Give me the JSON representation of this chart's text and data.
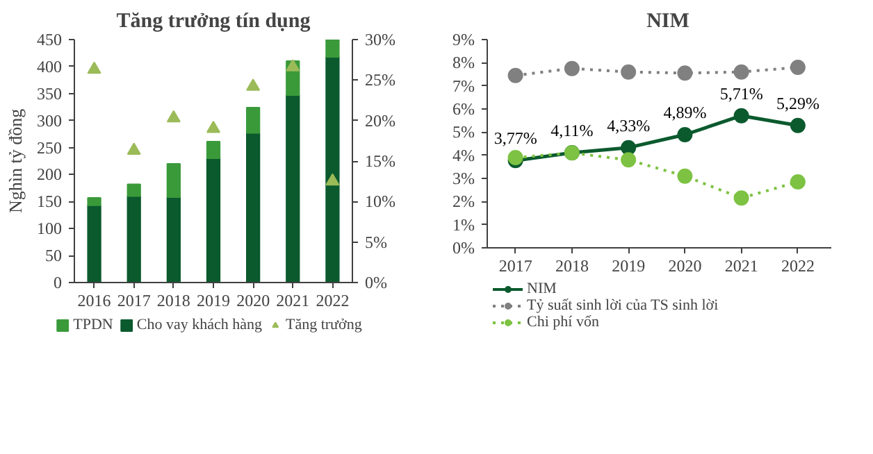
{
  "chart_data": [
    {
      "type": "bar",
      "title": "Tăng trưởng tín dụng",
      "ylabel": "Nghìn tỷ đồng",
      "categories": [
        "2016",
        "2017",
        "2018",
        "2019",
        "2020",
        "2021",
        "2022"
      ],
      "stacked": true,
      "legend": "bottom",
      "grid": false,
      "series": [
        {
          "name": "Cho vay khách hàng",
          "color": "#0b5a2e",
          "values": [
            143,
            160,
            158,
            230,
            277,
            347,
            418
          ]
        },
        {
          "name": "TPDN",
          "color": "#3a9a3a",
          "values": [
            14,
            22,
            62,
            31,
            47,
            63,
            32
          ]
        },
        {
          "name": "Tăng trưởng",
          "type": "scatter",
          "axis": "y2",
          "marker": "triangle",
          "color": "#9bbb59",
          "values": [
            26.3,
            16.3,
            20.3,
            19.0,
            24.2,
            26.6,
            12.5
          ]
        }
      ],
      "ylim": [
        0,
        450
      ],
      "yticks": [
        0,
        50,
        100,
        150,
        200,
        250,
        300,
        350,
        400,
        450
      ],
      "y2lim": [
        0,
        30
      ],
      "y2ticks": [
        {
          "value": 0,
          "label": "0%"
        },
        {
          "value": 5,
          "label": "5%"
        },
        {
          "value": 10,
          "label": "10%"
        },
        {
          "value": 15,
          "label": "15%"
        },
        {
          "value": 20,
          "label": "20%"
        },
        {
          "value": 25,
          "label": "25%"
        },
        {
          "value": 30,
          "label": "30%"
        }
      ]
    },
    {
      "type": "line",
      "title": "NIM",
      "categories": [
        "2017",
        "2018",
        "2019",
        "2020",
        "2021",
        "2022"
      ],
      "marker": "circle",
      "legend": "bottom",
      "grid": false,
      "series": [
        {
          "name": "NIM",
          "color": "#0b5a2e",
          "line_style": "solid",
          "values": [
            3.77,
            4.11,
            4.33,
            4.89,
            5.71,
            5.29
          ],
          "value_labels": [
            "3,77%",
            "4,11%",
            "4,33%",
            "4,89%",
            "5,71%",
            "5,29%"
          ]
        },
        {
          "name": "Tỷ suất sinh lời của TS sinh lời",
          "color": "#808080",
          "line_style": "dotted",
          "values": [
            7.45,
            7.75,
            7.6,
            7.55,
            7.6,
            7.8
          ]
        },
        {
          "name": "Chi phí vốn",
          "color": "#7dc242",
          "line_style": "dotted",
          "values": [
            3.9,
            4.1,
            3.8,
            3.1,
            2.15,
            2.85
          ]
        }
      ],
      "ylim": [
        0,
        9
      ],
      "yticks": [
        {
          "value": 0,
          "label": "0%"
        },
        {
          "value": 1,
          "label": "1%"
        },
        {
          "value": 2,
          "label": "2%"
        },
        {
          "value": 3,
          "label": "3%"
        },
        {
          "value": 4,
          "label": "4%"
        },
        {
          "value": 5,
          "label": "5%"
        },
        {
          "value": 6,
          "label": "6%"
        },
        {
          "value": 7,
          "label": "7%"
        },
        {
          "value": 8,
          "label": "8%"
        },
        {
          "value": 9,
          "label": "9%"
        }
      ]
    }
  ]
}
